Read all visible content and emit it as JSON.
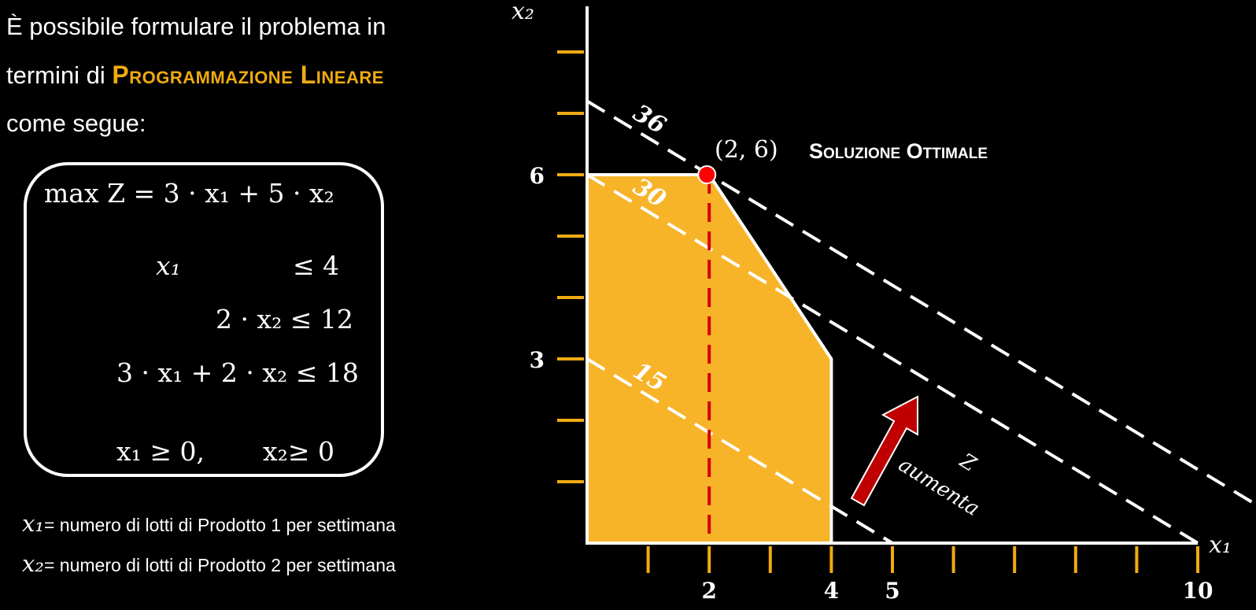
{
  "intro": {
    "line1": "È possibile formulare il problema in",
    "line2_pre": "termini di ",
    "line2_highlight": "Programmazione Lineare",
    "line3": "come segue:"
  },
  "model": {
    "objective": "max Z = 3 · x₁ + 5 · x₂",
    "c1_lhs": "x₁",
    "c1_rhs": "≤ 4",
    "c2": "2 · x₂ ≤ 12",
    "c3": "3 · x₁ + 2 · x₂ ≤ 18",
    "nonneg1": "x₁ ≥ 0,",
    "nonneg2": "x₂≥ 0"
  },
  "legend": {
    "x1_var": "x₁",
    "x1_desc": "= numero di lotti di Prodotto 1 per settimana",
    "x2_var": "x₂",
    "x2_desc": "= numero di lotti di Prodotto 2 per settimana"
  },
  "plot": {
    "x_axis_label": "x₁",
    "y_axis_label": "x₂",
    "x_tick_labels": [
      {
        "value": 2,
        "label": "2"
      },
      {
        "value": 4,
        "label": "4"
      },
      {
        "value": 5,
        "label": "5"
      },
      {
        "value": 10,
        "label": "10"
      }
    ],
    "y_tick_labels": [
      {
        "value": 3,
        "label": "3"
      },
      {
        "value": 6,
        "label": "6"
      }
    ],
    "x_ticks": [
      1,
      2,
      3,
      4,
      5,
      6,
      7,
      8,
      9,
      10
    ],
    "y_ticks": [
      1,
      2,
      3,
      4,
      5,
      6,
      7,
      8,
      9
    ],
    "feasible_region": [
      [
        0,
        0
      ],
      [
        0,
        6
      ],
      [
        2,
        6
      ],
      [
        4,
        3
      ],
      [
        4,
        0
      ]
    ],
    "iso_lines": [
      {
        "z": 15,
        "label": "15"
      },
      {
        "z": 30,
        "label": "30"
      },
      {
        "z": 36,
        "label": "36"
      }
    ],
    "optimum": {
      "x": 2,
      "y": 6,
      "label": "(2, 6)"
    },
    "optimum_title": "Soluzione Ottimale",
    "arrow_label_line1": "Z",
    "arrow_label_line2": "aumenta",
    "colors": {
      "region": "#f7b429",
      "ticks": "#f0ab12",
      "dashed_vertical": "#d40000",
      "point": "#ff0000",
      "arrow": "#c00000"
    }
  }
}
